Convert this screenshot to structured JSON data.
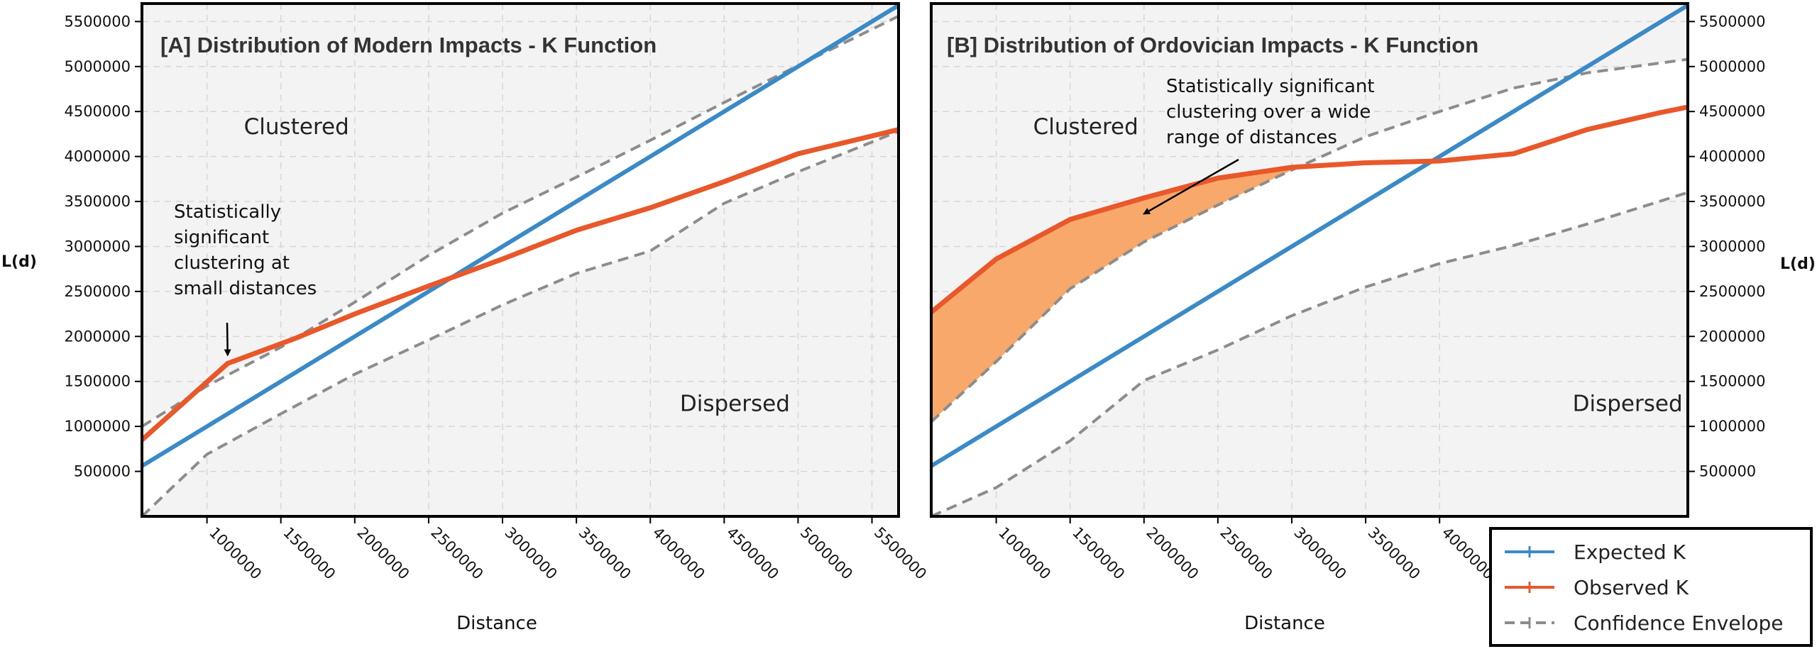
{
  "chart_data": [
    {
      "type": "line",
      "title": "[A] Distribution of Modern Impacts - K Function",
      "xlabel": "Distance",
      "ylabel": "L(d)",
      "xlim": [
        560000,
        5680000
      ],
      "ylim": [
        0,
        5700000
      ],
      "x_ticks": [
        "1000000",
        "1500000",
        "2000000",
        "2500000",
        "3000000",
        "3500000",
        "4000000",
        "4500000",
        "5000000",
        "5500000"
      ],
      "y_ticks": [
        "500000",
        "1000000",
        "1500000",
        "2000000",
        "2500000",
        "3000000",
        "3500000",
        "4000000",
        "4500000",
        "5000000",
        "5500000"
      ],
      "y_axis_side": "left",
      "grid": true,
      "regions": [
        {
          "label": "Clustered",
          "x": 1250000,
          "y": 4250000
        },
        {
          "label": "Dispersed",
          "x": 4200000,
          "y": 1170000
        }
      ],
      "annotation": {
        "lines": [
          "Statistically",
          "significant",
          "clustering at",
          "small distances"
        ],
        "arrow_to": {
          "x": 1140000,
          "y": 1730000
        }
      },
      "series": [
        {
          "name": "Expected K",
          "color": "#3A8AC8",
          "x": [
            560000,
            5680000
          ],
          "y": [
            560000,
            5680000
          ]
        },
        {
          "name": "Observed K",
          "color": "#E8582A",
          "x": [
            560000,
            1140000,
            1600000,
            2000000,
            2500000,
            3000000,
            3500000,
            4000000,
            4500000,
            5000000,
            5680000
          ],
          "y": [
            850000,
            1700000,
            1980000,
            2250000,
            2560000,
            2860000,
            3180000,
            3430000,
            3720000,
            4030000,
            4300000
          ]
        },
        {
          "name": "Confidence Envelope",
          "color": "#8C8C8C",
          "upper": {
            "x": [
              560000,
              1000000,
              1500000,
              2000000,
              2500000,
              3000000,
              3500000,
              4000000,
              4500000,
              5000000,
              5680000
            ],
            "y": [
              1000000,
              1450000,
              1880000,
              2380000,
              2900000,
              3370000,
              3770000,
              4180000,
              4600000,
              5010000,
              5560000
            ]
          },
          "lower": {
            "x": [
              560000,
              1000000,
              1500000,
              2000000,
              2500000,
              3000000,
              3500000,
              4000000,
              4500000,
              5000000,
              5680000
            ],
            "y": [
              0,
              690000,
              1140000,
              1580000,
              1960000,
              2350000,
              2700000,
              2950000,
              3480000,
              3830000,
              4280000
            ]
          }
        }
      ]
    },
    {
      "type": "line",
      "title": "[B] Distribution of Ordovician Impacts - K Function",
      "xlabel": "Distance",
      "ylabel": "L(d)",
      "xlim": [
        560000,
        5680000
      ],
      "ylim": [
        0,
        5700000
      ],
      "x_ticks": [
        "1000000",
        "1500000",
        "2000000",
        "2500000",
        "3000000",
        "3500000",
        "4000000"
      ],
      "y_ticks": [
        "500000",
        "1000000",
        "1500000",
        "2000000",
        "2500000",
        "3000000",
        "3500000",
        "4000000",
        "4500000",
        "5000000",
        "5500000"
      ],
      "y_axis_side": "right",
      "grid": true,
      "regions": [
        {
          "label": "Clustered",
          "x": 1250000,
          "y": 4250000
        },
        {
          "label": "Dispersed",
          "x": 4900000,
          "y": 1170000
        }
      ],
      "annotation": {
        "lines": [
          "Statistically significant",
          "clustering over a wide",
          "range of distances"
        ],
        "arrow_to": {
          "x": 2000000,
          "y": 3300000
        }
      },
      "series": [
        {
          "name": "Expected K",
          "color": "#3A8AC8",
          "x": [
            560000,
            5680000
          ],
          "y": [
            560000,
            5680000
          ]
        },
        {
          "name": "Observed K",
          "color": "#E8582A",
          "x": [
            560000,
            1000000,
            1500000,
            2000000,
            2500000,
            3000000,
            3500000,
            4000000,
            4500000,
            5000000,
            5500000,
            5680000
          ],
          "y": [
            2270000,
            2860000,
            3300000,
            3540000,
            3760000,
            3880000,
            3930000,
            3950000,
            4030000,
            4300000,
            4490000,
            4550000
          ]
        },
        {
          "name": "Confidence Envelope",
          "color": "#8C8C8C",
          "upper": {
            "x": [
              560000,
              1000000,
              1500000,
              2000000,
              2500000,
              3000000,
              3500000,
              4000000,
              4500000,
              5000000,
              5680000
            ],
            "y": [
              1050000,
              1720000,
              2530000,
              3050000,
              3460000,
              3850000,
              4220000,
              4500000,
              4760000,
              4930000,
              5080000
            ]
          },
          "lower": {
            "x": [
              560000,
              1000000,
              1500000,
              2000000,
              2500000,
              3000000,
              3500000,
              4000000,
              4500000,
              5000000,
              5680000
            ],
            "y": [
              0,
              320000,
              840000,
              1510000,
              1850000,
              2230000,
              2550000,
              2810000,
              3010000,
              3250000,
              3600000
            ]
          }
        }
      ],
      "significant_fill": {
        "color": "#F7A86A",
        "x": [
          560000,
          1000000,
          1500000,
          2000000,
          2500000,
          3000000,
          3500000
        ],
        "observed_y": [
          2270000,
          2860000,
          3300000,
          3540000,
          3760000,
          3880000,
          3930000
        ],
        "upper_y": [
          1050000,
          1720000,
          2530000,
          3050000,
          3460000,
          3850000,
          3930000
        ]
      }
    }
  ],
  "legend": {
    "placement": "bottom-right",
    "entries": [
      {
        "label": "Expected K",
        "color": "#3A8AC8",
        "style": "solid"
      },
      {
        "label": "Observed K",
        "color": "#E8582A",
        "style": "solid"
      },
      {
        "label": "Confidence Envelope",
        "color": "#8C8C8C",
        "style": "dashed"
      }
    ]
  }
}
